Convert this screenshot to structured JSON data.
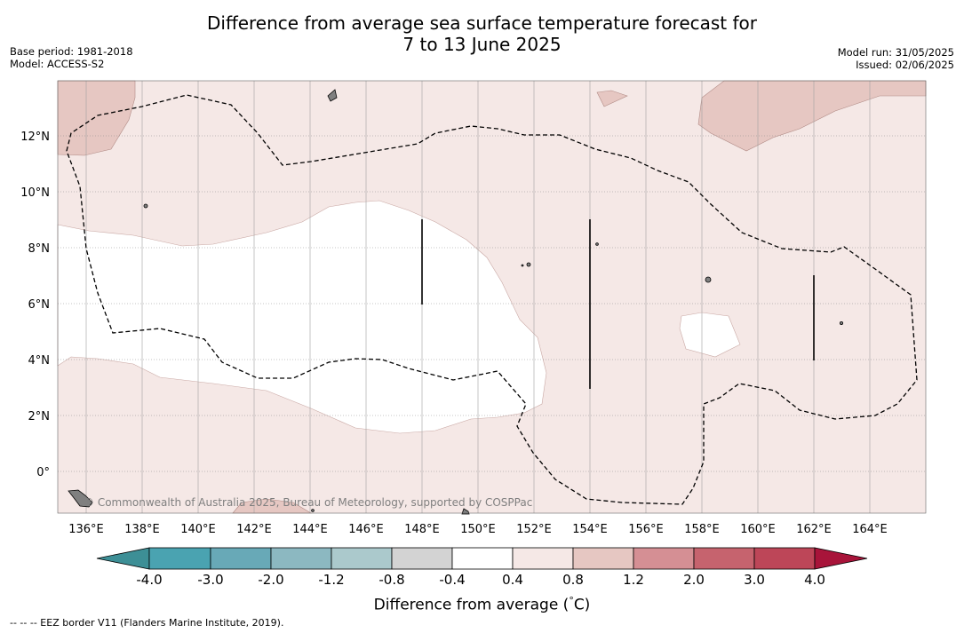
{
  "header": {
    "title_line1": "Difference from average sea surface temperature forecast for",
    "title_line2": "7 to 13 June 2025",
    "base_period": "Base period: 1981-2018",
    "model": "Model: ACCESS-S2",
    "model_run": "Model run: 31/05/2025",
    "issued": "Issued: 02/06/2025"
  },
  "map": {
    "lon_range": [
      135,
      166
    ],
    "lat_range": [
      -1.5,
      14
    ],
    "lon_ticks": [
      "136°E",
      "138°E",
      "140°E",
      "142°E",
      "144°E",
      "146°E",
      "148°E",
      "150°E",
      "152°E",
      "154°E",
      "156°E",
      "158°E",
      "160°E",
      "162°E",
      "164°E"
    ],
    "lat_ticks": [
      "0°",
      "2°N",
      "4°N",
      "6°N",
      "8°N",
      "10°N",
      "12°N"
    ],
    "credit": "© Commonwealth of Australia 2025, Bureau of Meteorology, supported by COSPPac",
    "colors": {
      "near_zero": "#ffffff",
      "warm_0_4_0_8": "#f5e8e6",
      "warm_0_8_1_2": "#e6c7c2",
      "land": "#808080",
      "gridline": "#9a9a9a",
      "eez": "#000000"
    }
  },
  "colorbar": {
    "colors": [
      "#3d8f96",
      "#4aa3b1",
      "#68a9b7",
      "#8cb8c1",
      "#abc9cc",
      "#d3d3d3",
      "#ffffff",
      "#f5e8e6",
      "#e6c7c2",
      "#d58f94",
      "#c6636e",
      "#bd4658",
      "#a8143a"
    ],
    "labels": [
      "-4.0",
      "-3.0",
      "-2.0",
      "-1.2",
      "-0.8",
      "-0.4",
      "0.4",
      "0.8",
      "1.2",
      "2.0",
      "3.0",
      "4.0"
    ],
    "title": "Difference from average (",
    "title_unit": "C)",
    "degree_symbol": "°"
  },
  "footnote": "--  --  -- EEZ border V11 (Flanders Marine Institute, 2019)."
}
